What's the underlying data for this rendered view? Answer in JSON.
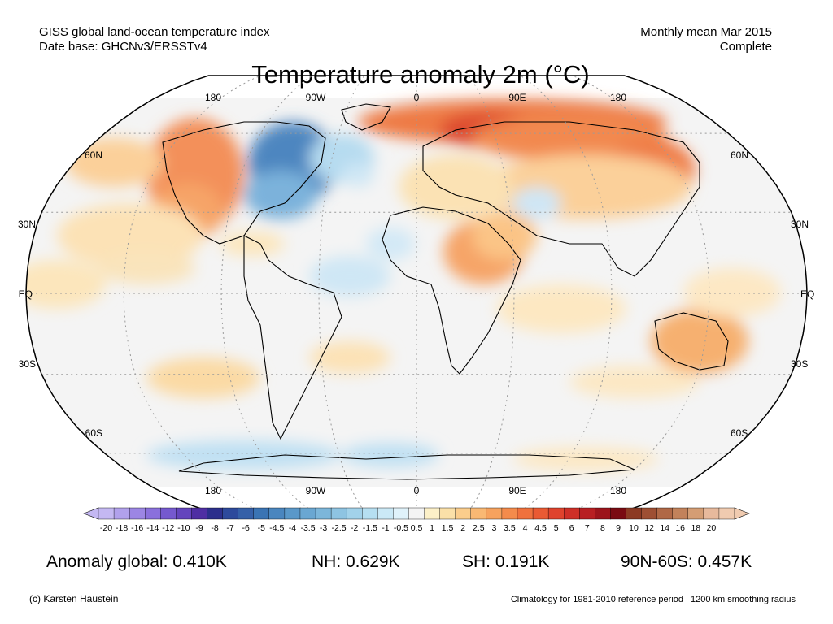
{
  "header": {
    "line1_left": "GISS global land-ocean temperature index",
    "line2_left": "Date base: GHCNv3/ERSSTv4",
    "line1_right": "Monthly mean Mar 2015",
    "line2_right": "Complete"
  },
  "title": "Temperature anomaly 2m (°C)",
  "map": {
    "top_lon_labels": [
      "180",
      "90W",
      "0",
      "90E",
      "180"
    ],
    "bottom_lon_labels": [
      "180",
      "90W",
      "0",
      "90E",
      "180"
    ],
    "left_lat_labels": [
      "60N",
      "30N",
      "EQ",
      "30S",
      "60S"
    ],
    "right_lat_labels": [
      "60N",
      "30N",
      "EQ",
      "30S",
      "60S"
    ]
  },
  "colorbar": {
    "labels": [
      "-20",
      "-18",
      "-16",
      "-14",
      "-12",
      "-10",
      "-9",
      "-8",
      "-7",
      "-6",
      "-5",
      "-4.5",
      "-4",
      "-3.5",
      "-3",
      "-2.5",
      "-2",
      "-1.5",
      "-1",
      "-0.5",
      "0.5",
      "1",
      "1.5",
      "2",
      "2.5",
      "3",
      "3.5",
      "4",
      "4.5",
      "5",
      "6",
      "7",
      "8",
      "9",
      "10",
      "12",
      "14",
      "16",
      "18",
      "20"
    ],
    "colors": [
      "#c4b8f2",
      "#b1a1ec",
      "#9c86e4",
      "#8a70dc",
      "#7559cf",
      "#6445bd",
      "#4f2ea3",
      "#2c2f8c",
      "#2d4a9c",
      "#3560a8",
      "#3a74b4",
      "#4a86bf",
      "#5a98c9",
      "#6aa7d2",
      "#7cb6da",
      "#8ec4e2",
      "#a2d2ea",
      "#b6dff1",
      "#cbe9f6",
      "#e0f2fa",
      "#f4f4f4",
      "#fcf0c8",
      "#fbe0a8",
      "#fbcd8c",
      "#f9b873",
      "#f6a25e",
      "#f48b4c",
      "#f0713d",
      "#ea5a33",
      "#df432d",
      "#ce2f27",
      "#b81f22",
      "#9c141b",
      "#7a0b12",
      "#8c3a23",
      "#9e4f33",
      "#b06846",
      "#c2825b",
      "#d49d74",
      "#e7b99c",
      "#f0cbb0"
    ]
  },
  "stats": {
    "global": "Anomaly global: 0.410K",
    "nh": "NH: 0.629K",
    "sh": "SH: 0.191K",
    "region": "90N-60S: 0.457K"
  },
  "footer": {
    "left": "(c) Karsten Haustein",
    "right": "Climatology for 1981-2010 reference period | 1200 km smoothing radius"
  }
}
